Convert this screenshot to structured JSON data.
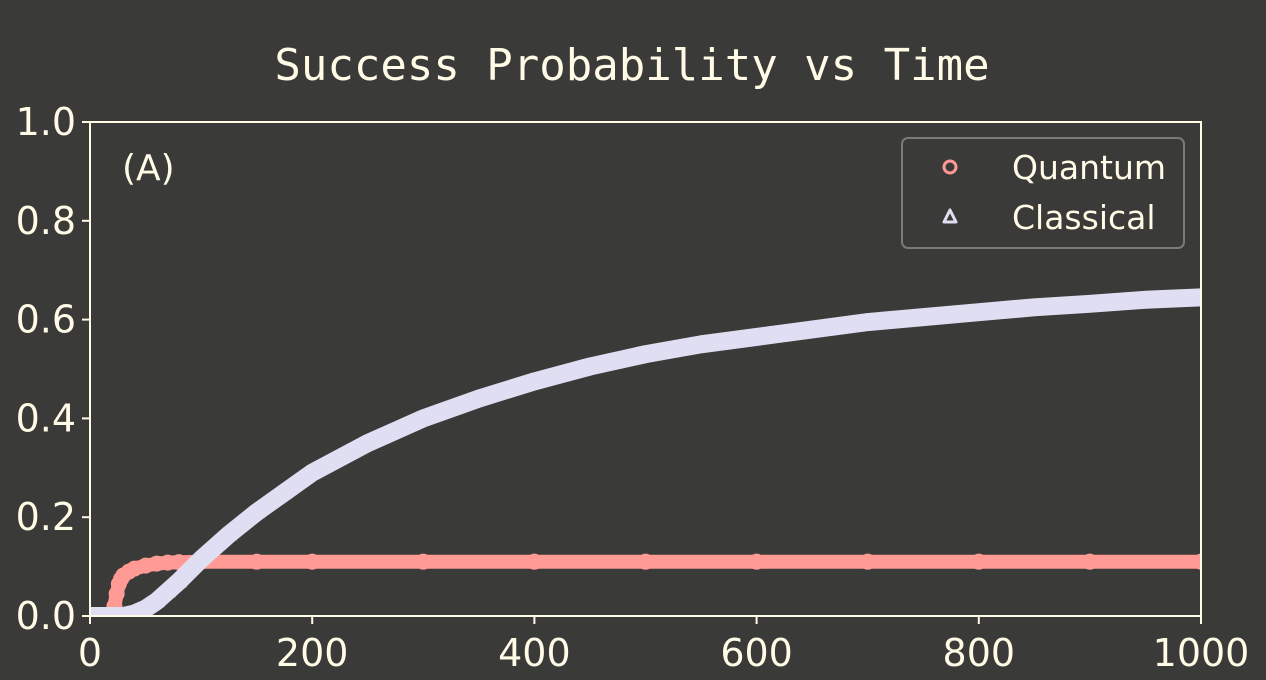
{
  "chart_data": {
    "type": "scatter",
    "title": "Success Probability vs Time",
    "panel_label": "(A)",
    "xlabel": "",
    "ylabel": "",
    "xlim": [
      0,
      1000
    ],
    "ylim": [
      0,
      1.0
    ],
    "x_ticks": [
      "0",
      "200",
      "400",
      "600",
      "800",
      "1000"
    ],
    "y_ticks": [
      "0.0",
      "0.2",
      "0.4",
      "0.6",
      "0.8",
      "1.0"
    ],
    "grid": false,
    "legend_position": "upper right",
    "series": [
      {
        "name": "Quantum",
        "marker": "circle",
        "color": "#ff9a94",
        "points": [
          [
            0,
            0.0
          ],
          [
            10,
            0.0
          ],
          [
            15,
            0.0
          ],
          [
            20,
            0.005
          ],
          [
            22,
            0.02
          ],
          [
            24,
            0.045
          ],
          [
            26,
            0.065
          ],
          [
            28,
            0.075
          ],
          [
            30,
            0.082
          ],
          [
            35,
            0.09
          ],
          [
            40,
            0.096
          ],
          [
            50,
            0.102
          ],
          [
            60,
            0.106
          ],
          [
            70,
            0.108
          ],
          [
            80,
            0.109
          ],
          [
            100,
            0.11
          ],
          [
            150,
            0.11
          ],
          [
            200,
            0.11
          ],
          [
            300,
            0.11
          ],
          [
            400,
            0.11
          ],
          [
            500,
            0.11
          ],
          [
            600,
            0.11
          ],
          [
            700,
            0.11
          ],
          [
            800,
            0.11
          ],
          [
            900,
            0.11
          ],
          [
            1000,
            0.11
          ]
        ]
      },
      {
        "name": "Classical",
        "marker": "triangle",
        "color": "#e0def2",
        "points": [
          [
            0,
            0.0
          ],
          [
            20,
            0.0
          ],
          [
            30,
            0.0
          ],
          [
            40,
            0.005
          ],
          [
            50,
            0.015
          ],
          [
            60,
            0.03
          ],
          [
            70,
            0.05
          ],
          [
            80,
            0.07
          ],
          [
            100,
            0.115
          ],
          [
            125,
            0.165
          ],
          [
            150,
            0.21
          ],
          [
            175,
            0.25
          ],
          [
            200,
            0.29
          ],
          [
            250,
            0.35
          ],
          [
            300,
            0.4
          ],
          [
            350,
            0.44
          ],
          [
            400,
            0.475
          ],
          [
            450,
            0.505
          ],
          [
            500,
            0.53
          ],
          [
            550,
            0.55
          ],
          [
            600,
            0.565
          ],
          [
            650,
            0.58
          ],
          [
            700,
            0.595
          ],
          [
            750,
            0.605
          ],
          [
            800,
            0.615
          ],
          [
            850,
            0.625
          ],
          [
            900,
            0.632
          ],
          [
            950,
            0.64
          ],
          [
            1000,
            0.645
          ]
        ]
      }
    ]
  }
}
